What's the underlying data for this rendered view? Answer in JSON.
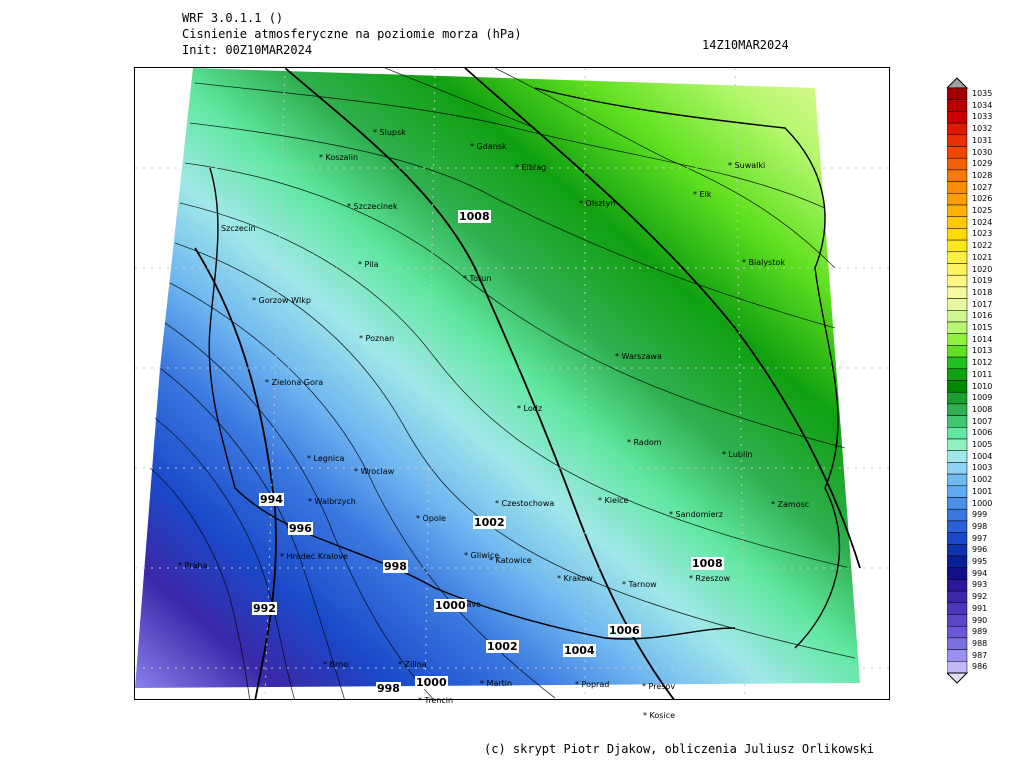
{
  "header": {
    "model": "WRF 3.0.1.1 ()",
    "variable": "Cisnienie atmosferyczne na poziomie morza (hPa)",
    "init": "Init: 00Z10MAR2024",
    "valid": "14Z10MAR2024"
  },
  "credits": "(c) skrypt Piotr Djakow, obliczenia Juliusz Orlikowski",
  "cities": [
    {
      "name": "Slupsk"
    },
    {
      "name": "Gdansk"
    },
    {
      "name": "Koszalin"
    },
    {
      "name": "Elblag"
    },
    {
      "name": "Olsztyn"
    },
    {
      "name": "Suwalki"
    },
    {
      "name": "Elk"
    },
    {
      "name": "Szczecinek"
    },
    {
      "name": "Szczecin"
    },
    {
      "name": "Bialystok"
    },
    {
      "name": "Pila"
    },
    {
      "name": "Torun"
    },
    {
      "name": "Gorzow Wlkp"
    },
    {
      "name": "Poznan"
    },
    {
      "name": "Warszawa"
    },
    {
      "name": "Zielona Gora"
    },
    {
      "name": "Lodz"
    },
    {
      "name": "Radom"
    },
    {
      "name": "Lublin"
    },
    {
      "name": "Legnica"
    },
    {
      "name": "Wroclaw"
    },
    {
      "name": "Walbrzych"
    },
    {
      "name": "Czestochowa"
    },
    {
      "name": "Kielce"
    },
    {
      "name": "Opole"
    },
    {
      "name": "Sandomierz"
    },
    {
      "name": "Zamosc"
    },
    {
      "name": "Hradec Kralove"
    },
    {
      "name": "Gliwice"
    },
    {
      "name": "Katowice"
    },
    {
      "name": "Praha"
    },
    {
      "name": "Krakow"
    },
    {
      "name": "Tarnow"
    },
    {
      "name": "Rzeszow"
    },
    {
      "name": "Ostrava"
    },
    {
      "name": "Brno"
    },
    {
      "name": "Zilina"
    },
    {
      "name": "Martin"
    },
    {
      "name": "Poprad"
    },
    {
      "name": "Presov"
    },
    {
      "name": "Kosice"
    },
    {
      "name": "Trencin"
    }
  ],
  "contour_labels": [
    "1008",
    "1002",
    "994",
    "996",
    "998",
    "992",
    "1000",
    "1006",
    "1002",
    "1004",
    "1008",
    "998",
    "1000"
  ],
  "colorbar": {
    "levels": [
      1035,
      1034,
      1033,
      1032,
      1031,
      1030,
      1029,
      1028,
      1027,
      1026,
      1025,
      1024,
      1023,
      1022,
      1021,
      1020,
      1019,
      1018,
      1017,
      1016,
      1015,
      1014,
      1013,
      1012,
      1011,
      1010,
      1009,
      1008,
      1007,
      1006,
      1005,
      1004,
      1003,
      1002,
      1001,
      1000,
      999,
      998,
      997,
      996,
      995,
      994,
      993,
      992,
      991,
      990,
      989,
      988,
      987,
      986
    ],
    "colors": [
      "#a00000",
      "#b80000",
      "#cc0000",
      "#dd1a00",
      "#e83000",
      "#f04800",
      "#f56000",
      "#f87800",
      "#fa8c00",
      "#fba000",
      "#fcb400",
      "#fcc800",
      "#fcdc00",
      "#fde820",
      "#fef040",
      "#fef460",
      "#fef880",
      "#f8f8a0",
      "#e8f8a0",
      "#d0f890",
      "#b8f870",
      "#90f040",
      "#60e020",
      "#20c020",
      "#10a010",
      "#008c00",
      "#1aa030",
      "#30b050",
      "#40c870",
      "#60e8a0",
      "#90f0c0",
      "#a0e8e8",
      "#90d0f0",
      "#70b8f0",
      "#60a8f0",
      "#4a90e8",
      "#3a78e0",
      "#2a60d8",
      "#1a48c8",
      "#1034b0",
      "#0a2098",
      "#101088",
      "#2a1898",
      "#3a28a8",
      "#4a38b8",
      "#5a48c8",
      "#6a58d8",
      "#7a70e0",
      "#9a90f0",
      "#c0b8f8"
    ]
  }
}
